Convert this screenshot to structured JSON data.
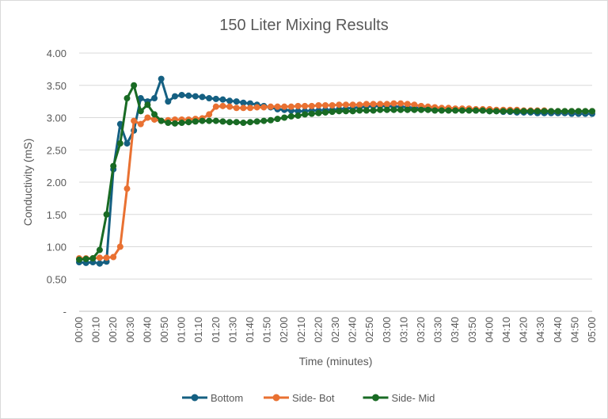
{
  "chart_data": {
    "type": "line",
    "title": "150 Liter Mixing Results",
    "xlabel": "Time (minutes)",
    "ylabel": "Conductivity (mS)",
    "ylim": [
      0,
      4
    ],
    "y_ticks": [
      "-",
      "0.50",
      "1.00",
      "1.50",
      "2.00",
      "2.50",
      "3.00",
      "3.50",
      "4.00"
    ],
    "x_ticks": [
      "00:00",
      "00:10",
      "00:20",
      "00:30",
      "00:40",
      "00:50",
      "01:00",
      "01:10",
      "01:20",
      "01:30",
      "01:40",
      "01:50",
      "02:00",
      "02:10",
      "02:20",
      "02:30",
      "02:40",
      "02:50",
      "03:00",
      "03:10",
      "03:20",
      "03:30",
      "03:40",
      "03:50",
      "04:00",
      "04:10",
      "04:20",
      "04:30",
      "04:40",
      "04:50",
      "05:00"
    ],
    "grid": "horizontal",
    "legend": "bottom",
    "x": [
      "00:00",
      "00:04",
      "00:08",
      "00:12",
      "00:16",
      "00:20",
      "00:24",
      "00:28",
      "00:32",
      "00:36",
      "00:40",
      "00:44",
      "00:48",
      "00:52",
      "00:56",
      "01:00",
      "01:04",
      "01:08",
      "01:12",
      "01:16",
      "01:20",
      "01:24",
      "01:28",
      "01:32",
      "01:36",
      "01:40",
      "01:44",
      "01:48",
      "01:52",
      "01:56",
      "02:00",
      "02:04",
      "02:08",
      "02:12",
      "02:16",
      "02:20",
      "02:24",
      "02:28",
      "02:32",
      "02:36",
      "02:40",
      "02:44",
      "02:48",
      "02:52",
      "02:56",
      "03:00",
      "03:04",
      "03:08",
      "03:12",
      "03:16",
      "03:20",
      "03:24",
      "03:28",
      "03:32",
      "03:36",
      "03:40",
      "03:44",
      "03:48",
      "03:52",
      "03:56",
      "04:00",
      "04:04",
      "04:08",
      "04:12",
      "04:16",
      "04:20",
      "04:24",
      "04:28",
      "04:32",
      "04:36",
      "04:40",
      "04:44",
      "04:48",
      "04:52",
      "04:56",
      "05:00"
    ],
    "series": [
      {
        "name": "Bottom",
        "color": "#156082",
        "values": [
          0.76,
          0.75,
          0.76,
          0.74,
          0.77,
          2.2,
          2.9,
          2.6,
          2.8,
          3.3,
          3.25,
          3.3,
          3.6,
          3.25,
          3.33,
          3.35,
          3.34,
          3.33,
          3.32,
          3.3,
          3.29,
          3.28,
          3.26,
          3.25,
          3.23,
          3.22,
          3.2,
          3.18,
          3.16,
          3.13,
          3.12,
          3.11,
          3.1,
          3.1,
          3.11,
          3.11,
          3.12,
          3.12,
          3.13,
          3.14,
          3.15,
          3.16,
          3.17,
          3.18,
          3.18,
          3.18,
          3.17,
          3.17,
          3.16,
          3.15,
          3.15,
          3.14,
          3.14,
          3.13,
          3.13,
          3.12,
          3.12,
          3.12,
          3.11,
          3.11,
          3.1,
          3.1,
          3.09,
          3.09,
          3.08,
          3.08,
          3.08,
          3.07,
          3.07,
          3.07,
          3.07,
          3.07,
          3.06,
          3.06,
          3.06,
          3.06
        ]
      },
      {
        "name": "Side- Bot",
        "color": "#E97132",
        "values": [
          0.82,
          0.82,
          0.82,
          0.83,
          0.83,
          0.84,
          1.0,
          1.9,
          2.95,
          2.9,
          3.0,
          2.97,
          2.95,
          2.96,
          2.97,
          2.97,
          2.97,
          2.98,
          2.99,
          3.05,
          3.17,
          3.18,
          3.17,
          3.15,
          3.15,
          3.15,
          3.16,
          3.16,
          3.17,
          3.17,
          3.17,
          3.17,
          3.18,
          3.18,
          3.18,
          3.19,
          3.19,
          3.19,
          3.2,
          3.2,
          3.2,
          3.2,
          3.21,
          3.21,
          3.21,
          3.21,
          3.22,
          3.22,
          3.21,
          3.2,
          3.18,
          3.17,
          3.16,
          3.15,
          3.15,
          3.14,
          3.14,
          3.14,
          3.13,
          3.13,
          3.13,
          3.12,
          3.12,
          3.12,
          3.12,
          3.11,
          3.11,
          3.11,
          3.11,
          3.1,
          3.1,
          3.1,
          3.1,
          3.1,
          3.1,
          3.1
        ]
      },
      {
        "name": "Side- Mid",
        "color": "#196B24",
        "values": [
          0.8,
          0.81,
          0.82,
          0.95,
          1.5,
          2.25,
          2.6,
          3.3,
          3.5,
          3.1,
          3.2,
          3.05,
          2.95,
          2.92,
          2.91,
          2.92,
          2.93,
          2.94,
          2.95,
          2.95,
          2.95,
          2.94,
          2.93,
          2.93,
          2.92,
          2.93,
          2.94,
          2.95,
          2.96,
          2.98,
          3.0,
          3.02,
          3.03,
          3.05,
          3.06,
          3.07,
          3.08,
          3.09,
          3.1,
          3.1,
          3.1,
          3.11,
          3.11,
          3.11,
          3.12,
          3.12,
          3.12,
          3.12,
          3.12,
          3.12,
          3.12,
          3.12,
          3.11,
          3.11,
          3.11,
          3.11,
          3.11,
          3.11,
          3.11,
          3.11,
          3.1,
          3.1,
          3.1,
          3.1,
          3.1,
          3.1,
          3.1,
          3.1,
          3.1,
          3.1,
          3.1,
          3.1,
          3.1,
          3.1,
          3.1,
          3.1
        ]
      }
    ]
  }
}
